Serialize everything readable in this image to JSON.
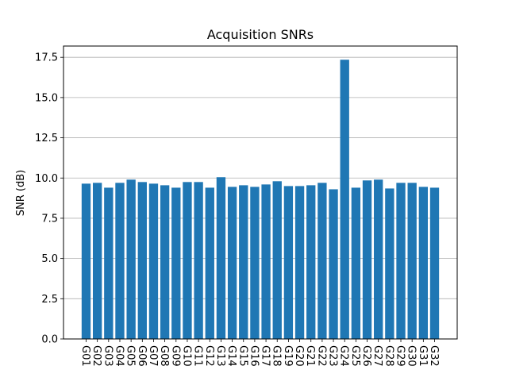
{
  "chart_data": {
    "type": "bar",
    "title": "Acquisition SNRs",
    "xlabel": "",
    "ylabel": "SNR (dB)",
    "ylim": [
      0,
      18.2
    ],
    "yticks": [
      "0.0",
      "2.5",
      "5.0",
      "7.5",
      "10.0",
      "12.5",
      "15.0",
      "17.5"
    ],
    "grid": "y",
    "bar_color": "#1f77b4",
    "categories": [
      "G01",
      "G02",
      "G03",
      "G04",
      "G05",
      "G06",
      "G07",
      "G08",
      "G09",
      "G10",
      "G11",
      "G12",
      "G13",
      "G14",
      "G15",
      "G16",
      "G17",
      "G18",
      "G19",
      "G20",
      "G21",
      "G22",
      "G23",
      "G24",
      "G25",
      "G26",
      "G27",
      "G28",
      "G29",
      "G30",
      "G31",
      "G32"
    ],
    "values": [
      9.65,
      9.7,
      9.4,
      9.7,
      9.9,
      9.75,
      9.65,
      9.55,
      9.4,
      9.75,
      9.75,
      9.4,
      10.05,
      9.45,
      9.55,
      9.45,
      9.6,
      9.8,
      9.5,
      9.5,
      9.55,
      9.7,
      9.3,
      17.35,
      9.4,
      9.85,
      9.9,
      9.35,
      9.7,
      9.7,
      9.45,
      9.4
    ]
  }
}
